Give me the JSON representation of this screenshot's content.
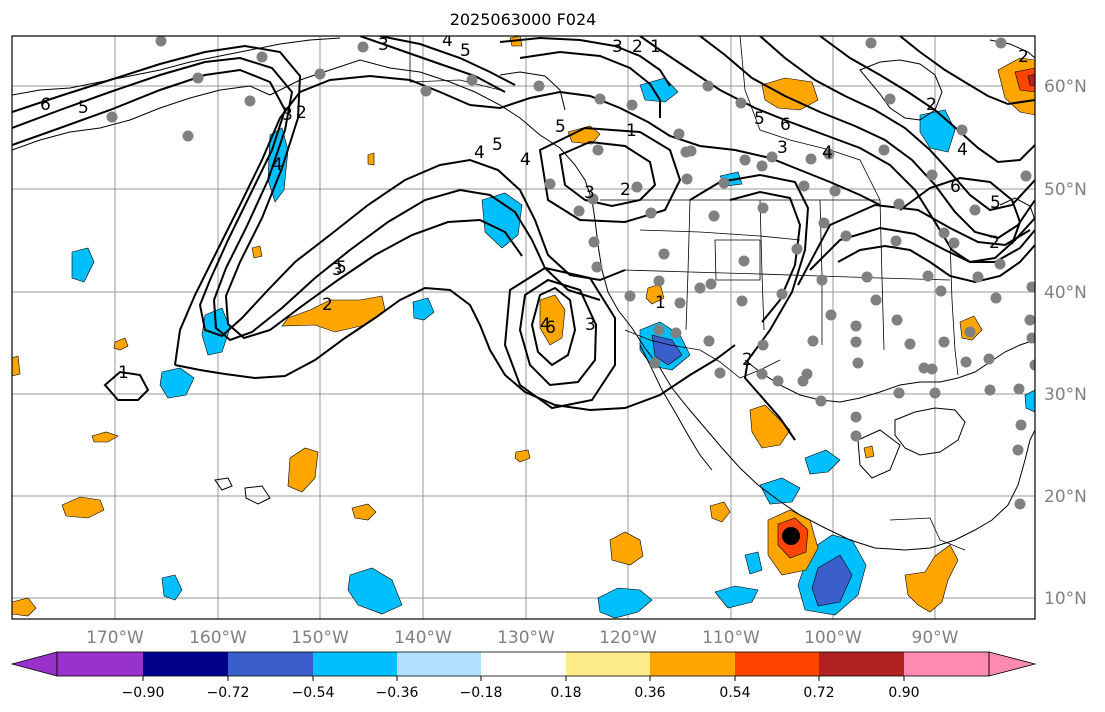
{
  "map": {
    "title": "2025063000 F024",
    "lon_labels": [
      "170°W",
      "160°W",
      "150°W",
      "140°W",
      "130°W",
      "120°W",
      "110°W",
      "100°W",
      "90°W"
    ],
    "lat_labels": [
      "60°N",
      "50°N",
      "40°N",
      "30°N",
      "20°N",
      "10°N"
    ],
    "contour_labels": [
      "6",
      "5",
      "3",
      "4",
      "5",
      "3",
      "2",
      "1",
      "2",
      "3",
      "4",
      "5",
      "1",
      "5",
      "6",
      "3",
      "4",
      "2",
      "4",
      "6",
      "5",
      "2",
      "1",
      "2",
      "3",
      "4",
      "5",
      "6",
      "1",
      "2",
      "3",
      "4",
      "2",
      "2",
      "3",
      "4",
      "5"
    ],
    "colorbar": {
      "ticks": [
        "−0.90",
        "−0.72",
        "−0.54",
        "−0.36",
        "−0.18",
        "0.18",
        "0.36",
        "0.54",
        "0.72",
        "0.90"
      ],
      "colors": [
        "#9932cc",
        "#00008b",
        "#3a5fcd",
        "#00bfff",
        "#b0e2ff",
        "#ffffff",
        "#ffec8b",
        "#ffa500",
        "#ff4500",
        "#b22222",
        "#ff8ab0"
      ]
    }
  }
}
